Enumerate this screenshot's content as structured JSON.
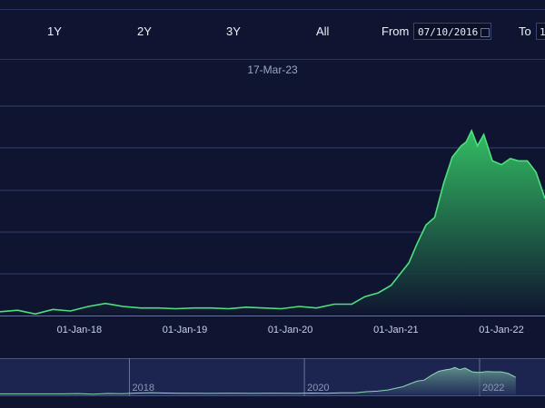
{
  "range_selector": {
    "buttons": [
      "1Y",
      "2Y",
      "3Y",
      "All"
    ],
    "from_label": "From",
    "from_value": "07/10/2016",
    "to_label": "To",
    "to_value": "1"
  },
  "hover_date": "17-Mar-23",
  "colors": {
    "background": "#0f1530",
    "line": "#4ee07e",
    "area_top": "#35c766",
    "area_bottom": "#0f1530",
    "grid": "#39406a"
  },
  "chart_data": {
    "type": "area",
    "title": "",
    "xlabel": "",
    "ylabel": "",
    "x_tick_labels": [
      "01-Jan-18",
      "01-Jan-19",
      "01-Jan-20",
      "01-Jan-21",
      "01-Jan-22"
    ],
    "navigator_labels": [
      "2018",
      "2020",
      "2022"
    ],
    "grid": true,
    "series": [
      {
        "x": [
          "2017-04-01",
          "2017-06-01",
          "2017-08-01",
          "2017-10-01",
          "2017-12-01",
          "2018-02-01",
          "2018-04-01",
          "2018-06-01",
          "2018-08-01",
          "2018-10-01",
          "2018-12-01",
          "2019-02-01",
          "2019-04-01",
          "2019-06-01",
          "2019-08-01",
          "2019-10-01",
          "2019-12-01",
          "2020-02-01",
          "2020-04-01",
          "2020-06-01",
          "2020-08-01",
          "2020-09-15",
          "2020-11-01",
          "2020-12-15",
          "2021-01-15",
          "2021-02-15",
          "2021-03-15",
          "2021-04-15",
          "2021-05-15",
          "2021-06-15",
          "2021-07-15",
          "2021-08-15",
          "2021-09-01",
          "2021-09-20",
          "2021-10-10",
          "2021-11-01",
          "2021-12-01",
          "2022-01-01",
          "2022-02-01",
          "2022-03-01",
          "2022-04-01",
          "2022-05-01",
          "2022-06-01"
        ],
        "values": [
          0.5,
          0.7,
          0.2,
          0.8,
          0.6,
          1.2,
          1.6,
          1.2,
          1.0,
          1.0,
          0.9,
          1.0,
          1.0,
          0.9,
          1.1,
          1.0,
          0.9,
          1.2,
          1.0,
          1.5,
          1.5,
          2.5,
          3.0,
          4.0,
          5.5,
          7.0,
          9.5,
          12.0,
          13.0,
          17.5,
          21.0,
          22.5,
          23.0,
          24.5,
          22.5,
          24.0,
          20.5,
          20.0,
          20.8,
          20.5,
          20.5,
          19.0,
          15.5
        ]
      }
    ],
    "ylim": [
      0,
      28
    ]
  }
}
